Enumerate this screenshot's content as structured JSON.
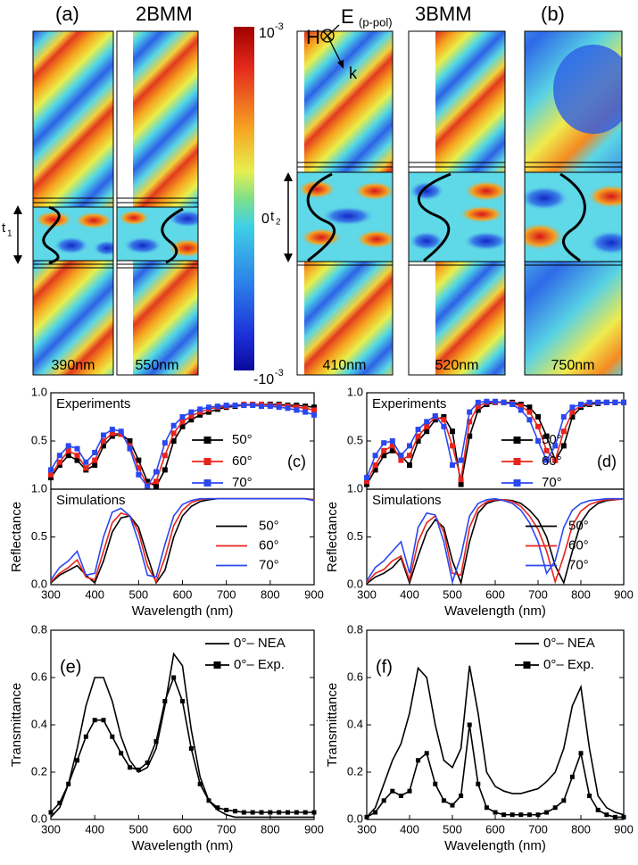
{
  "field_maps": {
    "groups": [
      {
        "label": "(a)",
        "name": "2BMM"
      },
      {
        "name": "3BMM",
        "label": "(b)"
      }
    ],
    "wavelengths": [
      "390nm",
      "550nm",
      "410nm",
      "520nm",
      "750nm"
    ],
    "colorbar": {
      "top_base": "10",
      "top_exp": "-3",
      "middle": "0",
      "bottom_base": "-10",
      "bottom_exp": "-3"
    },
    "thickness": [
      {
        "symbol": "t",
        "sub": "1"
      },
      {
        "symbol": "t",
        "sub": "2"
      }
    ],
    "incidence": {
      "h": "H",
      "e": "E",
      "pol": "(p-pol)",
      "k": "k"
    }
  },
  "chart_data": [
    {
      "type": "line",
      "annotation": "Experiments",
      "panel_label": "(c)",
      "xlim": [
        300,
        900
      ],
      "ylim": [
        0,
        1
      ],
      "yticks": [
        0.5,
        {
          "value": 1,
          "label": "1.0"
        }
      ],
      "legend": "lower right",
      "x": [
        300,
        320,
        340,
        360,
        380,
        400,
        420,
        440,
        460,
        480,
        500,
        520,
        540,
        560,
        580,
        600,
        620,
        640,
        660,
        680,
        700,
        720,
        740,
        760,
        780,
        800,
        820,
        840,
        860,
        880,
        900
      ],
      "series": [
        {
          "name": "50°",
          "color": "#000000",
          "marker": "square",
          "values": [
            0.12,
            0.25,
            0.35,
            0.3,
            0.2,
            0.25,
            0.45,
            0.55,
            0.57,
            0.5,
            0.3,
            0.08,
            0.03,
            0.2,
            0.5,
            0.65,
            0.72,
            0.77,
            0.8,
            0.83,
            0.85,
            0.86,
            0.87,
            0.88,
            0.88,
            0.88,
            0.88,
            0.87,
            0.87,
            0.86,
            0.85
          ]
        },
        {
          "name": "60°",
          "color": "#e8241c",
          "marker": "square",
          "values": [
            0.15,
            0.28,
            0.4,
            0.35,
            0.22,
            0.3,
            0.5,
            0.58,
            0.57,
            0.45,
            0.22,
            0.04,
            0.08,
            0.35,
            0.58,
            0.7,
            0.76,
            0.8,
            0.83,
            0.85,
            0.86,
            0.87,
            0.88,
            0.88,
            0.88,
            0.87,
            0.87,
            0.86,
            0.85,
            0.84,
            0.82
          ]
        },
        {
          "name": "70°",
          "color": "#2a48f0",
          "marker": "square",
          "values": [
            0.2,
            0.35,
            0.45,
            0.42,
            0.28,
            0.38,
            0.56,
            0.62,
            0.6,
            0.42,
            0.15,
            0.03,
            0.18,
            0.48,
            0.66,
            0.75,
            0.8,
            0.83,
            0.85,
            0.86,
            0.87,
            0.87,
            0.87,
            0.87,
            0.86,
            0.86,
            0.85,
            0.84,
            0.82,
            0.8,
            0.77
          ]
        }
      ]
    },
    {
      "type": "line",
      "annotation": "Simulations",
      "xlabel": "Wavelength (nm)",
      "ylabel": "Reflectance",
      "xlim": [
        300,
        900
      ],
      "ylim": [
        0,
        1
      ],
      "xticks": [
        300,
        400,
        500,
        600,
        700,
        800,
        900
      ],
      "yticks": [
        {
          "value": 0,
          "label": "0.0"
        },
        0.5,
        {
          "value": 1,
          "label": "1.0"
        }
      ],
      "legend": "center right",
      "x": [
        300,
        320,
        340,
        360,
        380,
        400,
        420,
        440,
        460,
        480,
        500,
        520,
        540,
        560,
        580,
        600,
        620,
        640,
        660,
        680,
        700,
        720,
        740,
        760,
        780,
        800,
        820,
        840,
        860,
        880,
        900
      ],
      "series": [
        {
          "name": "50°",
          "color": "#000000",
          "values": [
            0.02,
            0.1,
            0.15,
            0.2,
            0.1,
            0.02,
            0.25,
            0.55,
            0.7,
            0.72,
            0.6,
            0.3,
            0.02,
            0.15,
            0.5,
            0.72,
            0.82,
            0.87,
            0.89,
            0.9,
            0.9,
            0.9,
            0.9,
            0.9,
            0.9,
            0.9,
            0.9,
            0.9,
            0.9,
            0.9,
            0.89
          ]
        },
        {
          "name": "60°",
          "color": "#e8241c",
          "values": [
            0.03,
            0.12,
            0.18,
            0.26,
            0.08,
            0.05,
            0.35,
            0.65,
            0.75,
            0.72,
            0.55,
            0.2,
            0.03,
            0.28,
            0.62,
            0.78,
            0.86,
            0.89,
            0.9,
            0.9,
            0.9,
            0.9,
            0.9,
            0.9,
            0.9,
            0.9,
            0.9,
            0.9,
            0.9,
            0.9,
            0.89
          ]
        },
        {
          "name": "70°",
          "color": "#2a48f0",
          "values": [
            0.05,
            0.18,
            0.25,
            0.35,
            0.1,
            0.12,
            0.5,
            0.76,
            0.8,
            0.72,
            0.45,
            0.1,
            0.08,
            0.42,
            0.72,
            0.84,
            0.88,
            0.9,
            0.9,
            0.9,
            0.9,
            0.9,
            0.9,
            0.9,
            0.9,
            0.9,
            0.9,
            0.9,
            0.9,
            0.9,
            0.88
          ]
        }
      ]
    },
    {
      "type": "line",
      "annotation": "Experiments",
      "panel_label": "(d)",
      "xlim": [
        300,
        900
      ],
      "ylim": [
        0,
        1
      ],
      "yticks": [
        0.5,
        {
          "value": 1,
          "label": "1.0"
        }
      ],
      "legend": "lower right",
      "x": [
        300,
        320,
        340,
        360,
        380,
        400,
        420,
        440,
        460,
        480,
        500,
        520,
        540,
        560,
        580,
        600,
        620,
        640,
        660,
        680,
        700,
        720,
        740,
        760,
        780,
        800,
        820,
        840,
        860,
        880,
        900
      ],
      "series": [
        {
          "name": "50°",
          "color": "#000000",
          "marker": "square",
          "values": [
            0.05,
            0.2,
            0.35,
            0.4,
            0.35,
            0.25,
            0.5,
            0.6,
            0.72,
            0.75,
            0.6,
            0.05,
            0.55,
            0.82,
            0.88,
            0.9,
            0.9,
            0.9,
            0.88,
            0.85,
            0.75,
            0.55,
            0.3,
            0.45,
            0.75,
            0.85,
            0.88,
            0.89,
            0.9,
            0.9,
            0.9
          ]
        },
        {
          "name": "60°",
          "color": "#e8241c",
          "marker": "square",
          "values": [
            0.08,
            0.25,
            0.4,
            0.45,
            0.3,
            0.35,
            0.55,
            0.65,
            0.75,
            0.72,
            0.45,
            0.1,
            0.7,
            0.86,
            0.9,
            0.9,
            0.9,
            0.89,
            0.86,
            0.8,
            0.65,
            0.4,
            0.3,
            0.6,
            0.8,
            0.87,
            0.89,
            0.9,
            0.9,
            0.9,
            0.9
          ]
        },
        {
          "name": "70°",
          "color": "#2a48f0",
          "marker": "square",
          "values": [
            0.12,
            0.35,
            0.48,
            0.5,
            0.35,
            0.45,
            0.62,
            0.7,
            0.76,
            0.65,
            0.25,
            0.3,
            0.8,
            0.9,
            0.91,
            0.91,
            0.9,
            0.88,
            0.82,
            0.72,
            0.5,
            0.3,
            0.45,
            0.75,
            0.85,
            0.88,
            0.9,
            0.9,
            0.9,
            0.9,
            0.9
          ]
        }
      ]
    },
    {
      "type": "line",
      "annotation": "Simulations",
      "xlabel": "Wavelength (nm)",
      "ylabel": "Reflectance",
      "xlim": [
        300,
        900
      ],
      "ylim": [
        0,
        1
      ],
      "xticks": [
        300,
        400,
        500,
        600,
        700,
        800,
        900
      ],
      "yticks": [
        {
          "value": 0,
          "label": "0.0"
        },
        0.5,
        {
          "value": 1,
          "label": "1.0"
        }
      ],
      "legend": "center right",
      "x": [
        300,
        320,
        340,
        360,
        380,
        400,
        420,
        440,
        460,
        480,
        500,
        520,
        540,
        560,
        580,
        600,
        620,
        640,
        660,
        680,
        700,
        720,
        740,
        760,
        780,
        800,
        820,
        840,
        860,
        880,
        900
      ],
      "series": [
        {
          "name": "50°",
          "color": "#000000",
          "values": [
            0.01,
            0.08,
            0.12,
            0.18,
            0.28,
            0.02,
            0.3,
            0.55,
            0.68,
            0.6,
            0.25,
            0.02,
            0.45,
            0.75,
            0.85,
            0.88,
            0.89,
            0.88,
            0.85,
            0.78,
            0.68,
            0.5,
            0.2,
            0.02,
            0.35,
            0.65,
            0.78,
            0.85,
            0.88,
            0.89,
            0.9
          ]
        },
        {
          "name": "60°",
          "color": "#e8241c",
          "values": [
            0.02,
            0.12,
            0.16,
            0.25,
            0.3,
            0.05,
            0.45,
            0.65,
            0.72,
            0.55,
            0.12,
            0.1,
            0.6,
            0.8,
            0.87,
            0.89,
            0.89,
            0.87,
            0.82,
            0.72,
            0.58,
            0.35,
            0.03,
            0.3,
            0.62,
            0.77,
            0.84,
            0.87,
            0.89,
            0.89,
            0.9
          ]
        },
        {
          "name": "70°",
          "color": "#2a48f0",
          "values": [
            0.04,
            0.18,
            0.25,
            0.35,
            0.45,
            0.12,
            0.6,
            0.75,
            0.73,
            0.45,
            0.03,
            0.3,
            0.72,
            0.85,
            0.89,
            0.9,
            0.88,
            0.85,
            0.78,
            0.65,
            0.45,
            0.12,
            0.25,
            0.6,
            0.78,
            0.85,
            0.88,
            0.89,
            0.9,
            0.9,
            0.9
          ]
        }
      ]
    },
    {
      "type": "line",
      "panel_label": "(e)",
      "xlabel": "Wavelength (nm)",
      "ylabel": "Transmittance",
      "xlim": [
        300,
        900
      ],
      "ylim": [
        0,
        0.8
      ],
      "xticks": [
        300,
        400,
        500,
        600,
        700,
        800,
        900
      ],
      "yticks": [
        {
          "value": 0,
          "label": "0.0"
        },
        0.2,
        0.4,
        0.6,
        0.8
      ],
      "legend": "upper right",
      "x": [
        300,
        320,
        340,
        360,
        380,
        400,
        420,
        440,
        460,
        480,
        500,
        520,
        540,
        560,
        580,
        600,
        620,
        640,
        660,
        680,
        700,
        720,
        740,
        760,
        780,
        800,
        820,
        840,
        860,
        880,
        900
      ],
      "series": [
        {
          "name": "0°– NEA",
          "color": "#000000",
          "values": [
            0.01,
            0.05,
            0.15,
            0.3,
            0.48,
            0.6,
            0.6,
            0.5,
            0.35,
            0.25,
            0.2,
            0.22,
            0.3,
            0.48,
            0.7,
            0.65,
            0.38,
            0.18,
            0.08,
            0.04,
            0.02,
            0.01,
            0.01,
            0.01,
            0.01,
            0.01,
            0.01,
            0.01,
            0.01,
            0.01,
            0.01
          ]
        },
        {
          "name": "0°– Exp.",
          "color": "#000000",
          "marker": "square",
          "values": [
            0.03,
            0.07,
            0.15,
            0.25,
            0.35,
            0.42,
            0.42,
            0.35,
            0.28,
            0.22,
            0.21,
            0.24,
            0.33,
            0.5,
            0.6,
            0.5,
            0.3,
            0.15,
            0.08,
            0.05,
            0.04,
            0.035,
            0.03,
            0.03,
            0.03,
            0.03,
            0.03,
            0.03,
            0.03,
            0.03,
            0.03
          ]
        }
      ]
    },
    {
      "type": "line",
      "panel_label": "(f)",
      "xlabel": "Wavelength (nm)",
      "ylabel": "Transmittance",
      "xlim": [
        300,
        900
      ],
      "ylim": [
        0,
        0.8
      ],
      "xticks": [
        300,
        400,
        500,
        600,
        700,
        800,
        900
      ],
      "yticks": [
        {
          "value": 0,
          "label": "0.0"
        },
        0.2,
        0.4,
        0.6,
        0.8
      ],
      "legend": "upper right",
      "x": [
        300,
        320,
        340,
        360,
        380,
        400,
        420,
        440,
        460,
        480,
        500,
        520,
        540,
        560,
        580,
        600,
        620,
        640,
        660,
        680,
        700,
        720,
        740,
        760,
        780,
        800,
        820,
        840,
        860,
        880,
        900
      ],
      "series": [
        {
          "name": "0°– NEA",
          "color": "#000000",
          "values": [
            0.01,
            0.05,
            0.15,
            0.25,
            0.32,
            0.45,
            0.64,
            0.6,
            0.4,
            0.25,
            0.22,
            0.3,
            0.65,
            0.45,
            0.2,
            0.14,
            0.12,
            0.11,
            0.11,
            0.12,
            0.13,
            0.16,
            0.2,
            0.3,
            0.48,
            0.56,
            0.3,
            0.1,
            0.05,
            0.03,
            0.02
          ]
        },
        {
          "name": "0°– Exp.",
          "color": "#000000",
          "marker": "square",
          "values": [
            0.01,
            0.03,
            0.08,
            0.12,
            0.1,
            0.12,
            0.25,
            0.28,
            0.15,
            0.08,
            0.06,
            0.1,
            0.4,
            0.15,
            0.05,
            0.03,
            0.02,
            0.02,
            0.02,
            0.02,
            0.02,
            0.03,
            0.05,
            0.08,
            0.18,
            0.28,
            0.1,
            0.04,
            0.02,
            0.01,
            0.01
          ]
        }
      ]
    }
  ]
}
